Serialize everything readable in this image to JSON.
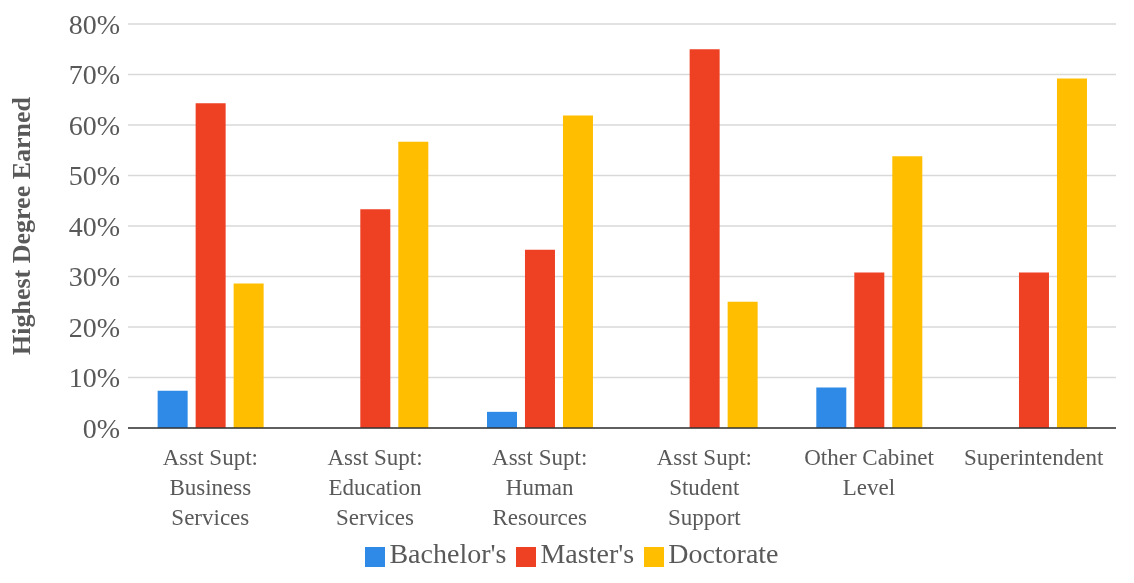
{
  "chart_data": {
    "type": "bar",
    "ylabel": "Highest Degree Earned",
    "categories": [
      "Asst Supt: Business Services",
      "Asst Supt: Education Services",
      "Asst Supt: Human Resources",
      "Asst Supt: Student Support",
      "Other Cabinet Level",
      "Superintendent"
    ],
    "series": [
      {
        "name": "Bachelor's",
        "color": "#2e8ae6",
        "values": [
          7.4,
          0,
          3.2,
          0,
          8.0,
          0
        ]
      },
      {
        "name": "Master's",
        "color": "#ee4023",
        "values": [
          64.3,
          43.3,
          35.3,
          75.0,
          30.8,
          30.8
        ]
      },
      {
        "name": "Doctorate",
        "color": "#ffbf00",
        "values": [
          28.6,
          56.7,
          61.9,
          25.0,
          53.8,
          69.2
        ]
      }
    ],
    "ylim": [
      0,
      80
    ],
    "yticks": [
      {
        "value": 0,
        "label": "0%"
      },
      {
        "value": 10,
        "label": "10%"
      },
      {
        "value": 20,
        "label": "20%"
      },
      {
        "value": 30,
        "label": "30%"
      },
      {
        "value": 40,
        "label": "40%"
      },
      {
        "value": 50,
        "label": "50%"
      },
      {
        "value": 60,
        "label": "60%"
      },
      {
        "value": 70,
        "label": "70%"
      },
      {
        "value": 80,
        "label": "80%"
      }
    ],
    "grid": "y",
    "legend": "bottom"
  }
}
